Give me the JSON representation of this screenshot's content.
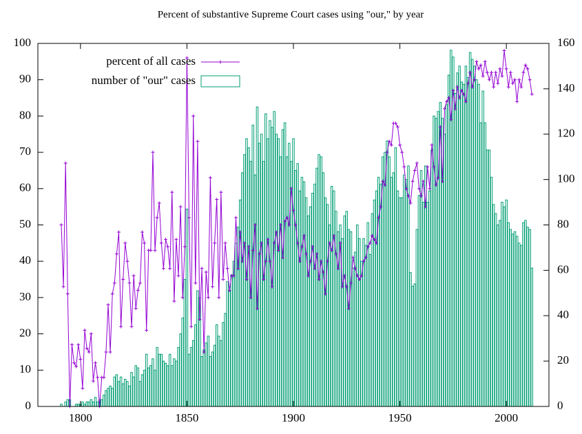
{
  "chart_data": {
    "type": "line",
    "title": "Percent of substantive Supreme Court cases using \"our,\" by year",
    "legend": "top-left",
    "xlim": [
      1780,
      2020
    ],
    "xticks": [
      1800,
      1850,
      1900,
      1950,
      2000
    ],
    "ylim": [
      0,
      100
    ],
    "yticks": [
      0,
      10,
      20,
      30,
      40,
      50,
      60,
      70,
      80,
      90,
      100
    ],
    "y2lim": [
      0,
      160
    ],
    "y2ticks": [
      0,
      20,
      40,
      60,
      80,
      100,
      120,
      140,
      160
    ],
    "x": [
      1791,
      1792,
      1793,
      1794,
      1795,
      1796,
      1797,
      1798,
      1799,
      1800,
      1801,
      1802,
      1803,
      1804,
      1805,
      1806,
      1807,
      1808,
      1809,
      1810,
      1811,
      1812,
      1813,
      1814,
      1815,
      1816,
      1817,
      1818,
      1819,
      1820,
      1821,
      1822,
      1823,
      1824,
      1825,
      1826,
      1827,
      1828,
      1829,
      1830,
      1831,
      1832,
      1833,
      1834,
      1835,
      1836,
      1837,
      1838,
      1839,
      1840,
      1841,
      1842,
      1843,
      1844,
      1845,
      1846,
      1847,
      1848,
      1849,
      1850,
      1851,
      1852,
      1853,
      1854,
      1855,
      1856,
      1857,
      1858,
      1859,
      1860,
      1861,
      1862,
      1863,
      1864,
      1865,
      1866,
      1867,
      1868,
      1869,
      1870,
      1871,
      1872,
      1873,
      1874,
      1875,
      1876,
      1877,
      1878,
      1879,
      1880,
      1881,
      1882,
      1883,
      1884,
      1885,
      1886,
      1887,
      1888,
      1889,
      1890,
      1891,
      1892,
      1893,
      1894,
      1895,
      1896,
      1897,
      1898,
      1899,
      1900,
      1901,
      1902,
      1903,
      1904,
      1905,
      1906,
      1907,
      1908,
      1909,
      1910,
      1911,
      1912,
      1913,
      1914,
      1915,
      1916,
      1917,
      1918,
      1919,
      1920,
      1921,
      1922,
      1923,
      1924,
      1925,
      1926,
      1927,
      1928,
      1929,
      1930,
      1931,
      1932,
      1933,
      1934,
      1935,
      1936,
      1937,
      1938,
      1939,
      1940,
      1941,
      1942,
      1943,
      1944,
      1945,
      1946,
      1947,
      1948,
      1949,
      1950,
      1951,
      1952,
      1953,
      1954,
      1955,
      1956,
      1957,
      1958,
      1959,
      1960,
      1961,
      1962,
      1963,
      1964,
      1965,
      1966,
      1967,
      1968,
      1969,
      1970,
      1971,
      1972,
      1973,
      1974,
      1975,
      1976,
      1977,
      1978,
      1979,
      1980,
      1981,
      1982,
      1983,
      1984,
      1985,
      1986,
      1987,
      1988,
      1989,
      1990,
      1991,
      1992,
      1993,
      1994,
      1995,
      1996,
      1997,
      1998,
      1999,
      2000,
      2001,
      2002,
      2003,
      2004,
      2005,
      2006,
      2007,
      2008,
      2009,
      2010,
      2011,
      2012
    ],
    "series": [
      {
        "name": "percent of all cases",
        "type": "line",
        "color": "#9400d3",
        "values": [
          50,
          33,
          67,
          31,
          0,
          17,
          12,
          11,
          17,
          13,
          5,
          21,
          16,
          15,
          20,
          7,
          12,
          8,
          0,
          8,
          8,
          15,
          28,
          15,
          31,
          34,
          42,
          48,
          22,
          35,
          45,
          40,
          34,
          22,
          36,
          27,
          32,
          34,
          48,
          45,
          21,
          43,
          43,
          70,
          43,
          52,
          56,
          45,
          38,
          46,
          44,
          38,
          59,
          29,
          46,
          36,
          55,
          30,
          44,
          96,
          52,
          22,
          80,
          34,
          73,
          24,
          38,
          15,
          37,
          30,
          63,
          33,
          45,
          57,
          30,
          59,
          35,
          45,
          38,
          32,
          36,
          36,
          52,
          38,
          48,
          40,
          45,
          35,
          44,
          30,
          43,
          50,
          27,
          42,
          45,
          35,
          40,
          46,
          40,
          33,
          45,
          48,
          43,
          50,
          41,
          51,
          52,
          50,
          60,
          54,
          50,
          45,
          40,
          44,
          47,
          42,
          36,
          40,
          44,
          38,
          42,
          35,
          40,
          37,
          31,
          40,
          45,
          43,
          47,
          42,
          38,
          45,
          33,
          36,
          33,
          27,
          34,
          41,
          38,
          36,
          35,
          36,
          40,
          41,
          44,
          45,
          47,
          46,
          45,
          52,
          55,
          62,
          61,
          70,
          73,
          72,
          78,
          78,
          77,
          72,
          70,
          66,
          60,
          58,
          56,
          62,
          65,
          67,
          60,
          58,
          62,
          55,
          66,
          60,
          72,
          66,
          61,
          63,
          77,
          62,
          82,
          84,
          85,
          79,
          87,
          82,
          88,
          85,
          87,
          86,
          84,
          89,
          92,
          88,
          90,
          95,
          93,
          94,
          91,
          95,
          92,
          90,
          92,
          88,
          92,
          89,
          93,
          91,
          98,
          93,
          88,
          92,
          89,
          90,
          84,
          90,
          88,
          92,
          94,
          93,
          90,
          86
        ]
      },
      {
        "name": "number of \"our\" cases",
        "type": "bar",
        "axis": "y2",
        "color": "#009e73",
        "values": [
          1,
          0,
          2,
          3,
          3,
          0,
          0,
          1,
          1,
          1,
          2,
          1,
          2,
          2,
          3,
          2,
          4,
          2,
          3,
          3,
          5,
          7,
          8,
          9,
          8,
          13,
          14,
          11,
          13,
          10,
          12,
          11,
          9,
          15,
          13,
          18,
          17,
          11,
          14,
          16,
          23,
          17,
          18,
          21,
          16,
          26,
          23,
          23,
          20,
          19,
          18,
          23,
          18,
          21,
          20,
          26,
          32,
          39,
          56,
          87,
          23,
          26,
          29,
          36,
          51,
          48,
          22,
          25,
          28,
          31,
          22,
          24,
          27,
          36,
          31,
          29,
          37,
          41,
          55,
          51,
          58,
          64,
          72,
          79,
          91,
          103,
          111,
          118,
          114,
          108,
          124,
          102,
          132,
          116,
          120,
          108,
          129,
          118,
          126,
          123,
          130,
          120,
          118,
          110,
          122,
          125,
          110,
          116,
          108,
          118,
          104,
          107,
          95,
          101,
          99,
          92,
          84,
          88,
          94,
          98,
          105,
          111,
          110,
          103,
          92,
          89,
          80,
          97,
          95,
          86,
          77,
          80,
          74,
          84,
          86,
          78,
          77,
          61,
          68,
          80,
          74,
          64,
          74,
          71,
          81,
          67,
          85,
          91,
          95,
          101,
          98,
          110,
          112,
          117,
          110,
          101,
          103,
          114,
          95,
          92,
          92,
          102,
          100,
          106,
          59,
          53,
          54,
          78,
          93,
          104,
          90,
          106,
          90,
          95,
          113,
          128,
          127,
          130,
          134,
          127,
          120,
          133,
          146,
          157,
          154,
          138,
          147,
          150,
          143,
          142,
          150,
          145,
          156,
          153,
          150,
          144,
          142,
          125,
          139,
          125,
          113,
          113,
          101,
          89,
          85,
          80,
          82,
          90,
          88,
          91,
          81,
          78,
          76,
          77,
          75,
          72,
          71,
          81,
          82,
          79,
          78,
          61
        ]
      }
    ]
  }
}
